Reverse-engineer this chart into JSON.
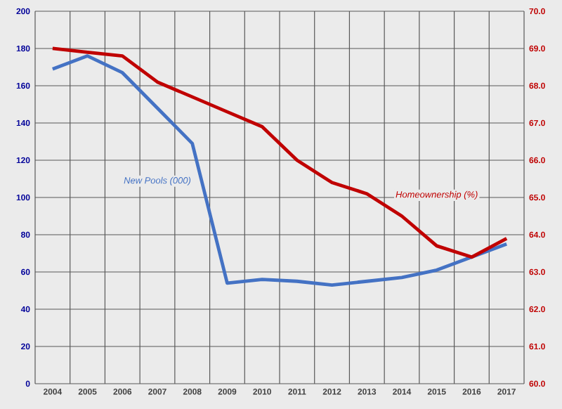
{
  "chart_data": {
    "type": "line",
    "categories": [
      "2004",
      "2005",
      "2006",
      "2007",
      "2008",
      "2009",
      "2010",
      "2011",
      "2012",
      "2013",
      "2014",
      "2015",
      "2016",
      "2017"
    ],
    "series": [
      {
        "name": "New Pools (000)",
        "color": "#4472c4",
        "values": [
          169,
          176,
          167,
          148,
          129,
          54,
          56,
          55,
          53,
          55,
          57,
          61,
          68,
          75
        ]
      },
      {
        "name": "Homeownership (%)",
        "color": "#c00000",
        "axis": "y2",
        "values": [
          69.0,
          68.9,
          68.8,
          68.1,
          67.7,
          67.3,
          66.9,
          66.0,
          65.4,
          65.1,
          64.5,
          63.7,
          63.4,
          63.9
        ]
      }
    ],
    "ylim": [
      0,
      200
    ],
    "yticks": [
      0,
      20,
      40,
      60,
      80,
      100,
      120,
      140,
      160,
      180,
      200
    ],
    "y2lim": [
      60,
      70
    ],
    "y2ticks": [
      {
        "value": 60,
        "label": "60.0"
      },
      {
        "value": 61,
        "label": "61.0"
      },
      {
        "value": 62,
        "label": "62.0"
      },
      {
        "value": 63,
        "label": "63.0"
      },
      {
        "value": 64,
        "label": "64.0"
      },
      {
        "value": 65,
        "label": "65.0"
      },
      {
        "value": 66,
        "label": "66.0"
      },
      {
        "value": 67,
        "label": "67.0"
      },
      {
        "value": 68,
        "label": "68.0"
      },
      {
        "value": 69,
        "label": "69.0"
      },
      {
        "value": 70,
        "label": "70.0"
      }
    ],
    "grid": true,
    "marker": "none",
    "line_style": "solid"
  }
}
